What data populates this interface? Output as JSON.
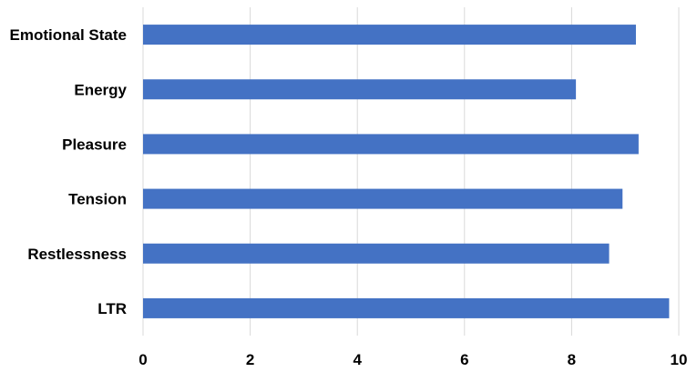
{
  "chart_data": {
    "type": "bar",
    "orientation": "horizontal",
    "categories": [
      "Emotional State",
      "Energy",
      "Pleasure",
      "Tension",
      "Restlessness",
      "LTR"
    ],
    "values": [
      9.2,
      8.08,
      9.25,
      8.95,
      8.7,
      9.82
    ],
    "xlim": [
      0,
      10
    ],
    "ticks": [
      "0",
      "2",
      "4",
      "6",
      "8",
      "10"
    ],
    "tick_values": [
      0,
      2,
      4,
      6,
      8,
      10
    ],
    "grid": true,
    "legend": "none",
    "bar_color": "#4472c4"
  }
}
